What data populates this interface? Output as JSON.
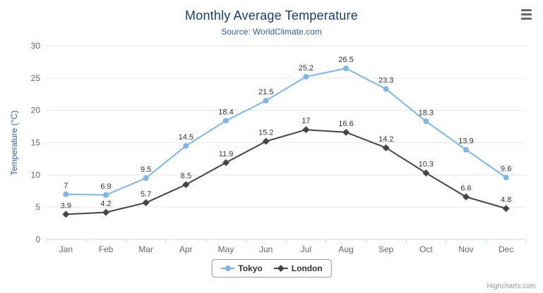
{
  "chart_data": {
    "type": "line",
    "title": "Monthly Average Temperature",
    "subtitle": "Source: WorldClimate.com",
    "xlabel": "",
    "ylabel": "Temperature (°C)",
    "ylim": [
      0,
      30
    ],
    "ytick_interval": 5,
    "grid": true,
    "legend_position": "bottom",
    "categories": [
      "Jan",
      "Feb",
      "Mar",
      "Apr",
      "May",
      "Jun",
      "Jul",
      "Aug",
      "Sep",
      "Oct",
      "Nov",
      "Dec"
    ],
    "series": [
      {
        "name": "Tokyo",
        "color": "#7cb5ec",
        "marker": "circle",
        "values": [
          7,
          6.9,
          9.5,
          14.5,
          18.4,
          21.5,
          25.2,
          26.5,
          23.3,
          18.3,
          13.9,
          9.6
        ]
      },
      {
        "name": "London",
        "color": "#434348",
        "marker": "diamond",
        "values": [
          3.9,
          4.2,
          5.7,
          8.5,
          11.9,
          15.2,
          17,
          16.6,
          14.2,
          10.3,
          6.6,
          4.8
        ]
      }
    ],
    "colors": {
      "grid": "#e6e6e6",
      "axis_line": "#ccd6eb",
      "axis_label": "#666666",
      "data_label": "#333333",
      "title": "#1a3e6b",
      "subtitle": "#335cad",
      "y_axis_title": "#335cad"
    }
  },
  "export_menu": {
    "icon": "hamburger-icon"
  },
  "credits": {
    "text": "Highcharts.com"
  }
}
